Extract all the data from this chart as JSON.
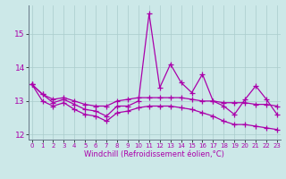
{
  "xlabel": "Windchill (Refroidissement éolien,°C)",
  "background_color": "#cce8e8",
  "grid_color": "#aacccc",
  "line_color": "#aa00aa",
  "spine_color": "#667788",
  "x": [
    0,
    1,
    2,
    3,
    4,
    5,
    6,
    7,
    8,
    9,
    10,
    11,
    12,
    13,
    14,
    15,
    16,
    17,
    18,
    19,
    20,
    21,
    22,
    23
  ],
  "y_main": [
    13.5,
    13.2,
    12.95,
    13.05,
    12.9,
    12.75,
    12.7,
    12.55,
    12.85,
    12.85,
    13.0,
    15.6,
    13.4,
    14.1,
    13.55,
    13.25,
    13.8,
    13.0,
    12.85,
    12.6,
    13.05,
    13.45,
    13.05,
    12.6
  ],
  "y_upper": [
    13.5,
    13.2,
    13.05,
    13.1,
    13.0,
    12.9,
    12.85,
    12.85,
    13.0,
    13.05,
    13.1,
    13.1,
    13.1,
    13.1,
    13.1,
    13.05,
    13.0,
    13.0,
    12.95,
    12.95,
    12.95,
    12.9,
    12.9,
    12.85
  ],
  "y_lower": [
    13.5,
    13.0,
    12.85,
    12.95,
    12.75,
    12.6,
    12.55,
    12.4,
    12.65,
    12.7,
    12.8,
    12.85,
    12.85,
    12.85,
    12.8,
    12.75,
    12.65,
    12.55,
    12.4,
    12.3,
    12.3,
    12.25,
    12.2,
    12.15
  ],
  "ylim": [
    11.85,
    15.85
  ],
  "yticks": [
    12,
    13,
    14,
    15
  ],
  "xlim": [
    -0.3,
    23.3
  ],
  "ylabel_fontsize": 6.5,
  "xlabel_fontsize": 6,
  "ytick_fontsize": 6.5,
  "xtick_fontsize": 5.0
}
